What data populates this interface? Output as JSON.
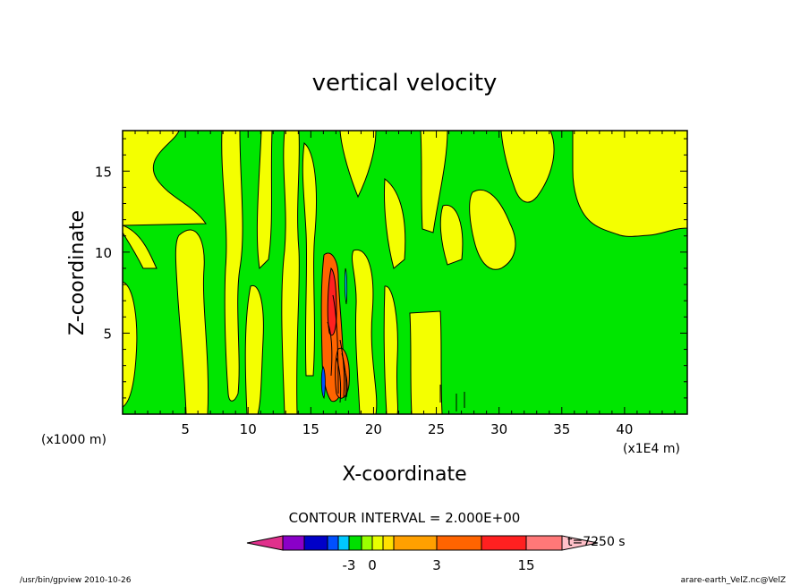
{
  "chart_data": {
    "type": "heatmap",
    "title": "vertical velocity",
    "xlabel": "X-coordinate",
    "ylabel": "Z-coordinate",
    "x_unit": "(x1E4 m)",
    "y_unit": "(x1000 m)",
    "xlim": [
      0,
      45
    ],
    "ylim": [
      0,
      17.5
    ],
    "x_ticks": [
      "5",
      "10",
      "15",
      "20",
      "25",
      "30",
      "35",
      "40"
    ],
    "x_tick_values": [
      5,
      10,
      15,
      20,
      25,
      30,
      35,
      40
    ],
    "y_ticks": [
      "5",
      "10",
      "15"
    ],
    "y_tick_values": [
      5,
      10,
      15
    ],
    "contour_interval_label": "CONTOUR INTERVAL = 2.000E+00",
    "time_label": "t=7250 s",
    "colorbar": {
      "levels": [
        -15,
        -9,
        -7,
        -5,
        -3,
        -1,
        0,
        1,
        2,
        3,
        5,
        7,
        9,
        15
      ],
      "level_labels": [
        "-3",
        "0",
        "3",
        "15"
      ],
      "label_values": [
        -3,
        0,
        3,
        15
      ],
      "colors": [
        "#e0308c",
        "#8a00c8",
        "#0000c8",
        "#0050ff",
        "#00c8ff",
        "#00e000",
        "#9aff00",
        "#e8ff00",
        "#ffe000",
        "#ffa000",
        "#ff6400",
        "#ff2020",
        "#ff7878",
        "#ffc0c8"
      ]
    },
    "field_summary": {
      "background": "weak downward motion (green, -1 to 0)",
      "positive_bands": "alternating weak updraft bands (yellow, 0 to 1)",
      "core": "strong updraft core (orange/red) near x=16-18, z=1-10"
    }
  },
  "footer": {
    "left": "/usr/bin/gpview   2010-10-26",
    "right": "arare-earth_VelZ.nc@VelZ"
  }
}
